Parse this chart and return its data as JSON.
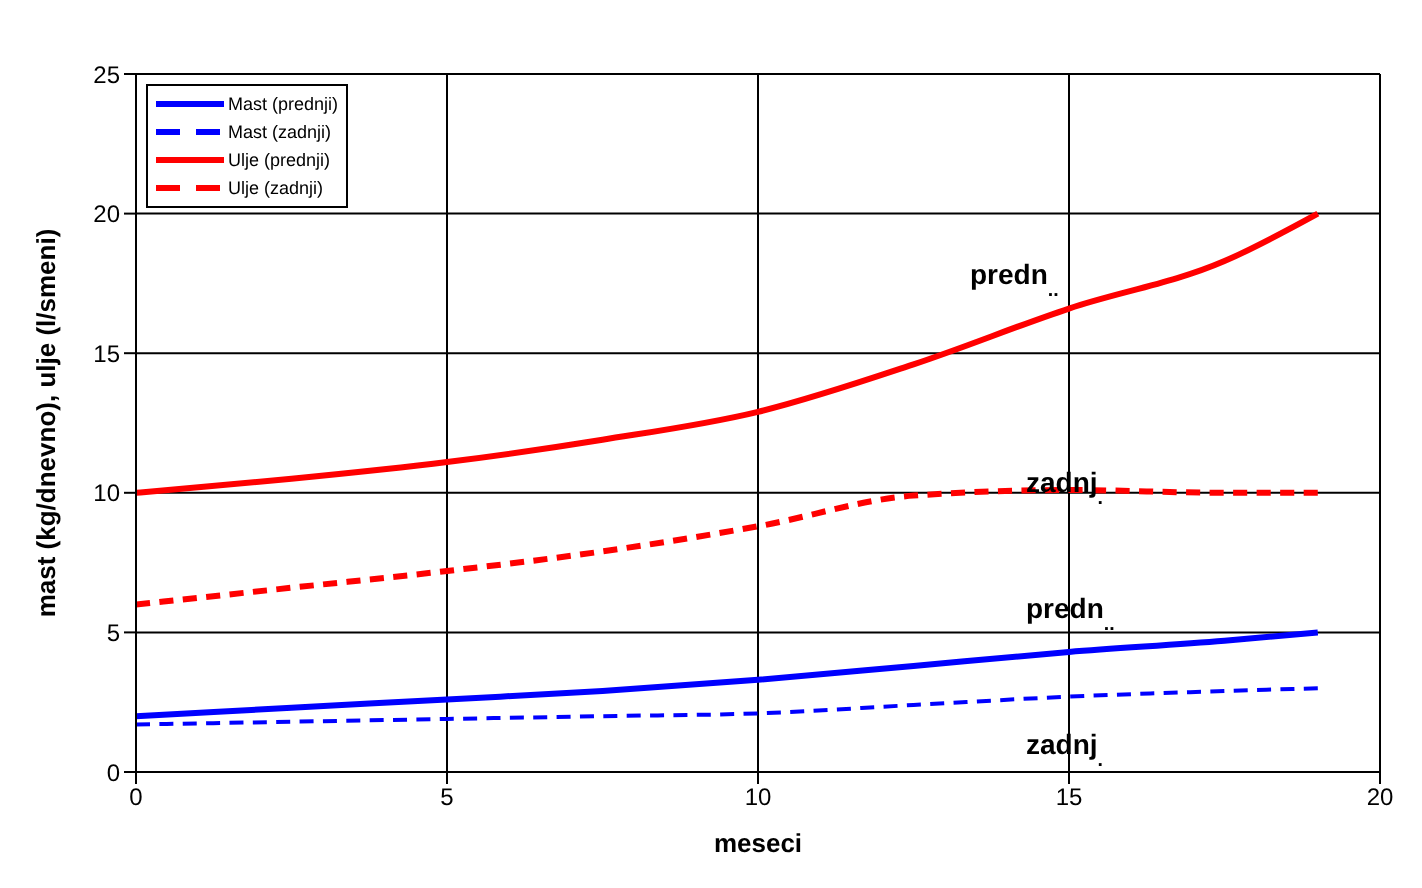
{
  "chart_data": {
    "type": "line",
    "xlabel": "meseci",
    "ylabel": "mast (kg/dnevno), ulje (l/smeni)",
    "x": [
      0,
      2.5,
      5,
      7.5,
      10,
      12.5,
      15,
      17.5,
      19
    ],
    "series": [
      {
        "name": "Mast (prednji)",
        "color": "#0000ff",
        "line_style": "solid",
        "values": [
          2,
          2.3,
          2.6,
          2.9,
          3.3,
          3.8,
          4.3,
          4.7,
          5
        ]
      },
      {
        "name": "Mast (zadnji)",
        "color": "#0000ff",
        "line_style": "dashed",
        "values": [
          1.7,
          1.8,
          1.9,
          2.0,
          2.1,
          2.4,
          2.7,
          2.9,
          3
        ]
      },
      {
        "name": "Ulje (prednji)",
        "color": "#ff0000",
        "line_style": "solid",
        "values": [
          10,
          10.5,
          11.1,
          11.9,
          12.9,
          14.6,
          16.6,
          18.3,
          20
        ]
      },
      {
        "name": "Ulje (zadnji)",
        "color": "#ff0000",
        "line_style": "dashed",
        "values": [
          6,
          6.6,
          7.2,
          7.9,
          8.8,
          9.9,
          10.1,
          10,
          10
        ]
      }
    ],
    "xlim": [
      0,
      20
    ],
    "xticks": [
      0,
      5,
      10,
      15,
      20
    ],
    "ylim": [
      0,
      25
    ],
    "yticks": [
      0,
      5,
      10,
      15,
      20,
      25
    ],
    "grid": true,
    "legend": "top left",
    "marker": "none",
    "annotations": [
      "predn$_{..}$",
      "zadnj$_{.}$",
      "predn$_{..}$",
      "zadnj$_{.}$"
    ]
  }
}
